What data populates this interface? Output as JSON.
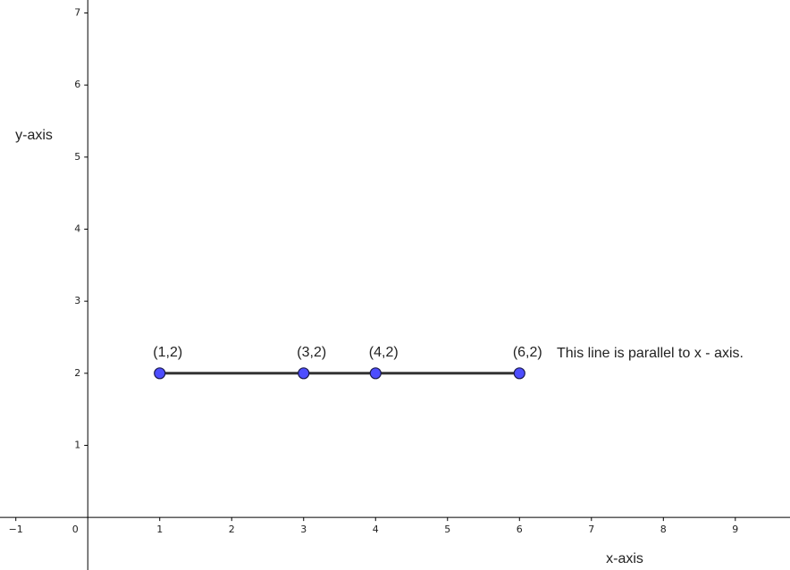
{
  "chart_data": {
    "type": "line",
    "x": [
      1,
      3,
      4,
      6
    ],
    "values": [
      2,
      2,
      2,
      2
    ],
    "value_labels": [
      "(1,2)",
      "(3,2)",
      "(4,2)",
      "(6,2)"
    ],
    "line_color": "#333333",
    "point_color": "#4d4dff",
    "annotation": "This line is parallel to x - axis.",
    "xlabel": "x-axis",
    "ylabel": "y-axis",
    "xlim": [
      -1.22,
      9.76
    ],
    "ylim": [
      -0.73,
      7.18
    ],
    "xticks": [
      {
        "value": -1,
        "label": "−1"
      },
      0,
      1,
      2,
      3,
      4,
      5,
      6,
      7,
      8,
      9
    ],
    "yticks": [
      1,
      2,
      3,
      4,
      5,
      6,
      7
    ],
    "grid": false
  }
}
